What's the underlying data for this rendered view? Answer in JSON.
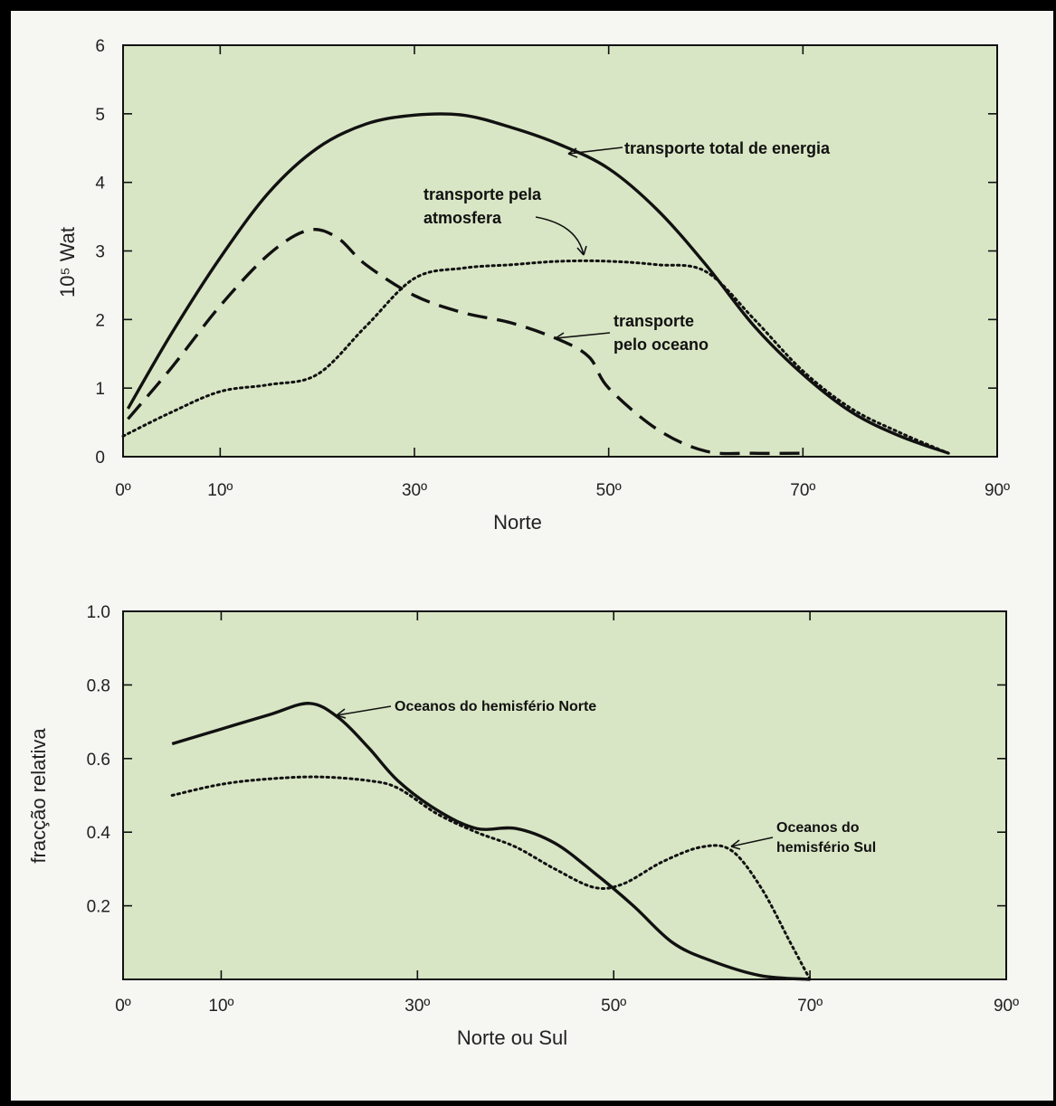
{
  "colors": {
    "plot_bg": "#d9e6c5",
    "line": "#111111"
  },
  "chart_data": [
    {
      "type": "line",
      "title": "",
      "xlabel": "Norte",
      "ylabel": "10⁵ Wat",
      "xlim": [
        0,
        90
      ],
      "ylim": [
        0,
        6
      ],
      "x_ticks": [
        0,
        10,
        30,
        50,
        70,
        90
      ],
      "x_tick_labels": [
        "0º",
        "10º",
        "30º",
        "50º",
        "70º",
        "90º"
      ],
      "y_ticks": [
        0,
        1,
        2,
        3,
        4,
        5,
        6
      ],
      "y_tick_labels": [
        "0",
        "1",
        "2",
        "3",
        "4",
        "5",
        "6"
      ],
      "grid": false,
      "series": [
        {
          "name": "transporte total de energia",
          "style": "solid",
          "x": [
            0.5,
            5,
            10,
            15,
            20,
            25,
            30,
            35,
            40,
            45,
            50,
            55,
            60,
            65,
            70,
            75,
            80,
            85
          ],
          "y": [
            0.7,
            1.8,
            2.9,
            3.85,
            4.5,
            4.85,
            4.98,
            4.98,
            4.8,
            4.55,
            4.2,
            3.6,
            2.8,
            1.9,
            1.2,
            0.65,
            0.3,
            0.05
          ]
        },
        {
          "name": "transporte pela atmosfera",
          "style": "dotted",
          "x": [
            0,
            5,
            10,
            15,
            20,
            25,
            30,
            35,
            40,
            45,
            50,
            55,
            60,
            65,
            70,
            75,
            80,
            85
          ],
          "y": [
            0.3,
            0.65,
            0.95,
            1.05,
            1.2,
            1.9,
            2.6,
            2.75,
            2.8,
            2.85,
            2.85,
            2.8,
            2.7,
            2.0,
            1.25,
            0.7,
            0.35,
            0.05
          ]
        },
        {
          "name": "transporte pelo oceano",
          "style": "dashed",
          "x": [
            0.5,
            5,
            10,
            15,
            19,
            22,
            25,
            30,
            35,
            40,
            45,
            48,
            50,
            55,
            60,
            65,
            70
          ],
          "y": [
            0.55,
            1.3,
            2.2,
            2.95,
            3.3,
            3.2,
            2.8,
            2.35,
            2.1,
            1.95,
            1.7,
            1.45,
            1.0,
            0.4,
            0.08,
            0.05,
            0.05
          ]
        }
      ],
      "annotations": [
        {
          "lines": [
            "transporte total de energia"
          ],
          "target": [
            45,
            4.45
          ]
        },
        {
          "lines": [
            "transporte pela",
            "atmosfera"
          ],
          "target": [
            46,
            2.9
          ]
        },
        {
          "lines": [
            "transporte",
            "pelo oceano"
          ],
          "target": [
            43,
            1.65
          ]
        }
      ]
    },
    {
      "type": "line",
      "title": "",
      "xlabel": "Norte ou Sul",
      "ylabel": "fracção relativa",
      "xlim": [
        0,
        90
      ],
      "ylim": [
        0,
        1.0
      ],
      "x_ticks": [
        0,
        10,
        30,
        50,
        70,
        90
      ],
      "x_tick_labels": [
        "0º",
        "10º",
        "30º",
        "50º",
        "70º",
        "90º"
      ],
      "y_ticks": [
        0.2,
        0.4,
        0.6,
        0.8,
        1.0
      ],
      "y_tick_labels": [
        "0.2",
        "0.4",
        "0.6",
        "0.8",
        "1.0"
      ],
      "grid": false,
      "series": [
        {
          "name": "Oceanos do hemisfério Norte",
          "style": "solid",
          "x": [
            5,
            10,
            15,
            19,
            22,
            25,
            28,
            32,
            36,
            40,
            44,
            48,
            52,
            56,
            60,
            65,
            70
          ],
          "y": [
            0.64,
            0.68,
            0.72,
            0.75,
            0.71,
            0.63,
            0.54,
            0.46,
            0.41,
            0.41,
            0.37,
            0.29,
            0.2,
            0.1,
            0.05,
            0.01,
            0.0
          ]
        },
        {
          "name": "Oceanos do hemisfério Sul",
          "style": "dotted",
          "x": [
            5,
            10,
            15,
            20,
            25,
            28,
            32,
            36,
            40,
            44,
            48,
            51,
            55,
            59,
            62,
            65,
            68,
            70
          ],
          "y": [
            0.5,
            0.53,
            0.545,
            0.55,
            0.54,
            0.52,
            0.45,
            0.4,
            0.36,
            0.3,
            0.25,
            0.26,
            0.32,
            0.36,
            0.35,
            0.25,
            0.1,
            0.0
          ]
        }
      ],
      "annotations": [
        {
          "lines": [
            "Oceanos do hemisfério Norte"
          ],
          "target": [
            22,
            0.72
          ]
        },
        {
          "lines": [
            "Oceanos do",
            "hemisfério Sul"
          ],
          "target": [
            62,
            0.35
          ]
        }
      ]
    }
  ]
}
